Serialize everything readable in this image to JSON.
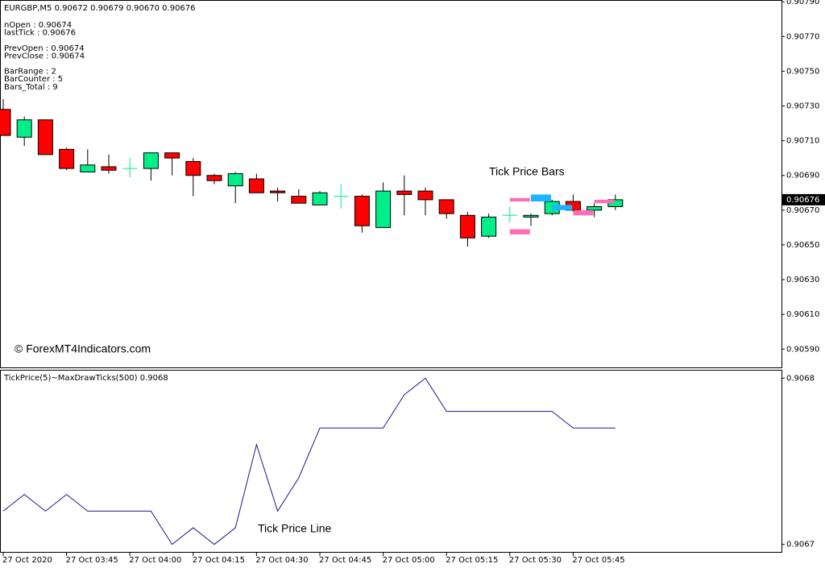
{
  "chart_data": [
    {
      "type": "candlestick",
      "title": "EURGBP,M5  0.90672 0.90679 0.90670 0.90676",
      "info": [
        [
          "nOpen : 0.90674",
          "lastTick : 0.90676"
        ],
        [
          "PrevOpen : 0.90674",
          "PrevClose : 0.90674"
        ],
        [
          "BarRange : 2",
          "BarCounter : 5",
          "Bars_Total : 9"
        ]
      ],
      "annotation": "Tick Price Bars",
      "watermark": "© ForexMT4Indicators.com",
      "open": [
        0.90728,
        0.90712,
        0.90722,
        0.90705,
        0.90692,
        0.90695,
        0.90694,
        0.90694,
        0.90703,
        0.90698,
        0.9069,
        0.90684,
        0.90688,
        0.90681,
        0.90678,
        0.90673,
        0.90678,
        0.90678,
        0.9066,
        0.90681,
        0.90681,
        0.90676,
        0.90667,
        0.90655,
        0.90667,
        0.90666,
        0.90668,
        0.90675,
        0.9067,
        0.90672
      ],
      "high": [
        0.90734,
        0.90724,
        0.90722,
        0.90706,
        0.90705,
        0.90702,
        0.907,
        0.90703,
        0.90703,
        0.907,
        0.90691,
        0.90692,
        0.90691,
        0.90683,
        0.90682,
        0.90681,
        0.90685,
        0.90679,
        0.90686,
        0.9069,
        0.90683,
        0.90676,
        0.90669,
        0.90668,
        0.90672,
        0.90668,
        0.90676,
        0.90679,
        0.90674,
        0.90679
      ],
      "low": [
        0.90713,
        0.90707,
        0.90702,
        0.90693,
        0.90692,
        0.90691,
        0.90689,
        0.90687,
        0.9069,
        0.90678,
        0.90685,
        0.90674,
        0.9068,
        0.90675,
        0.90674,
        0.90673,
        0.90671,
        0.90657,
        0.9066,
        0.90667,
        0.90667,
        0.90665,
        0.90649,
        0.90654,
        0.90663,
        0.90661,
        0.90667,
        0.90669,
        0.90666,
        0.9067
      ],
      "close": [
        0.90713,
        0.90722,
        0.90702,
        0.90694,
        0.90696,
        0.90693,
        0.90694,
        0.90703,
        0.907,
        0.9069,
        0.90687,
        0.90691,
        0.9068,
        0.9068,
        0.90674,
        0.9068,
        0.90678,
        0.90661,
        0.90681,
        0.90679,
        0.90676,
        0.90668,
        0.90654,
        0.90666,
        0.90667,
        0.90667,
        0.90675,
        0.9067,
        0.90672,
        0.90676
      ],
      "up_color": "#00ee88",
      "down_color": "#ff0000",
      "tick_bars": [
        {
          "bar": 24,
          "low": 0.90675,
          "high": 0.90677,
          "color": "#ff6eb4"
        },
        {
          "bar": 24,
          "low": 0.90656,
          "high": 0.90659,
          "color": "#ff6eb4"
        },
        {
          "bar": 25,
          "low": 0.90675,
          "high": 0.90679,
          "color": "#1eb4ff"
        },
        {
          "bar": 26,
          "low": 0.9067,
          "high": 0.90673,
          "color": "#1eb4ff"
        },
        {
          "bar": 27,
          "low": 0.90667,
          "high": 0.9067,
          "color": "#ff6eb4"
        },
        {
          "bar": 28,
          "low": 0.90674,
          "high": 0.90676,
          "color": "#ff6eb4"
        }
      ],
      "last_price": 0.90676,
      "ylim": [
        0.90579,
        0.90791
      ],
      "yticks": [
        {
          "value": 0.9079,
          "label": "0.90790"
        },
        {
          "value": 0.9077,
          "label": "0.90770"
        },
        {
          "value": 0.9075,
          "label": "0.90750"
        },
        {
          "value": 0.9073,
          "label": "0.90730"
        },
        {
          "value": 0.9071,
          "label": "0.90710"
        },
        {
          "value": 0.9069,
          "label": "0.90690"
        },
        {
          "value": 0.9067,
          "label": "0.90670"
        },
        {
          "value": 0.9065,
          "label": "0.90650"
        },
        {
          "value": 0.9063,
          "label": "0.90630"
        },
        {
          "value": 0.9061,
          "label": "0.90610"
        },
        {
          "value": 0.9059,
          "label": "0.90590"
        }
      ]
    },
    {
      "type": "line",
      "title": "TickPrice(5)~MaxDrawTicks(500) 0.9068",
      "annotation": "Tick Price Line",
      "color": "#1a1a8c",
      "categories": [
        "27 Oct 2020",
        null,
        null,
        "27 Oct 03:45",
        null,
        null,
        "27 Oct 04:00",
        null,
        null,
        "27 Oct 04:15",
        null,
        null,
        "27 Oct 04:30",
        null,
        null,
        "27 Oct 04:45",
        null,
        null,
        "27 Oct 05:00",
        null,
        null,
        "27 Oct 05:15",
        null,
        null,
        "27 Oct 05:30",
        null,
        null,
        "27 Oct 05:45",
        null,
        null
      ],
      "values": [
        0.90672,
        0.90673,
        0.90672,
        0.90673,
        0.90672,
        0.90672,
        0.90672,
        0.90672,
        0.9067,
        0.90671,
        0.9067,
        0.90671,
        0.90676,
        0.90672,
        0.90674,
        0.90677,
        0.90677,
        0.90677,
        0.90677,
        0.90679,
        0.9068,
        0.90678,
        0.90678,
        0.90678,
        0.90678,
        0.90678,
        0.90678,
        0.90677,
        0.90677,
        0.90677
      ],
      "ylim": [
        0.906695,
        0.906805
      ],
      "yticks": [
        0.9068,
        0.9067
      ]
    }
  ]
}
